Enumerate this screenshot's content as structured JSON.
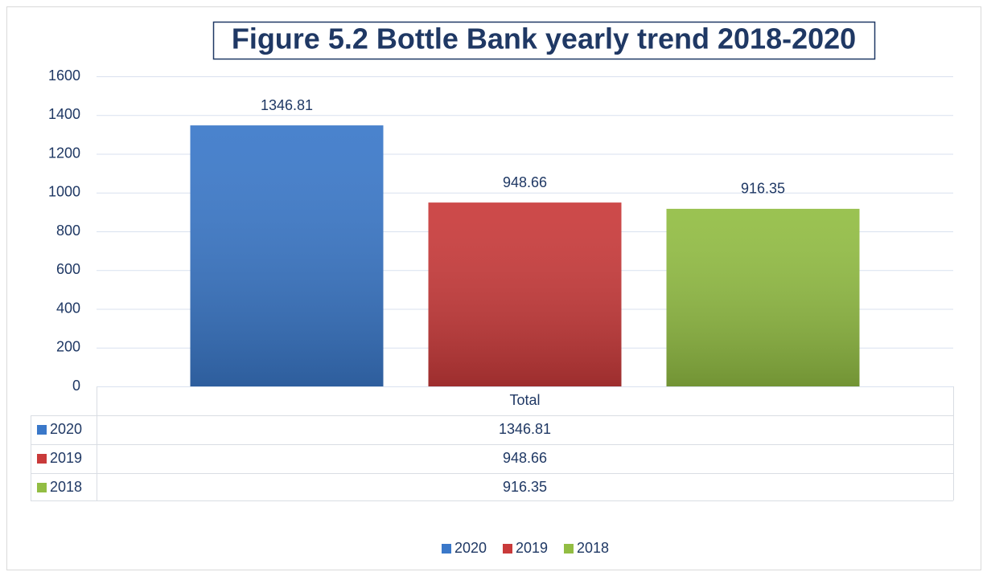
{
  "chart_data": {
    "type": "bar",
    "title": "Figure 5.2 Bottle Bank yearly trend 2018-2020",
    "categories": [
      "Total"
    ],
    "series": [
      {
        "name": "2020",
        "color": "#3a78c9",
        "values": [
          1346.81
        ]
      },
      {
        "name": "2019",
        "color": "#c93a3a",
        "values": [
          948.66
        ]
      },
      {
        "name": "2018",
        "color": "#92bd43",
        "values": [
          916.35
        ]
      }
    ],
    "ylim": [
      0,
      1600
    ],
    "yticks": [
      0,
      200,
      400,
      600,
      800,
      1000,
      1200,
      1400,
      1600
    ],
    "grid": true,
    "data_table": true,
    "legend": "bottom"
  }
}
